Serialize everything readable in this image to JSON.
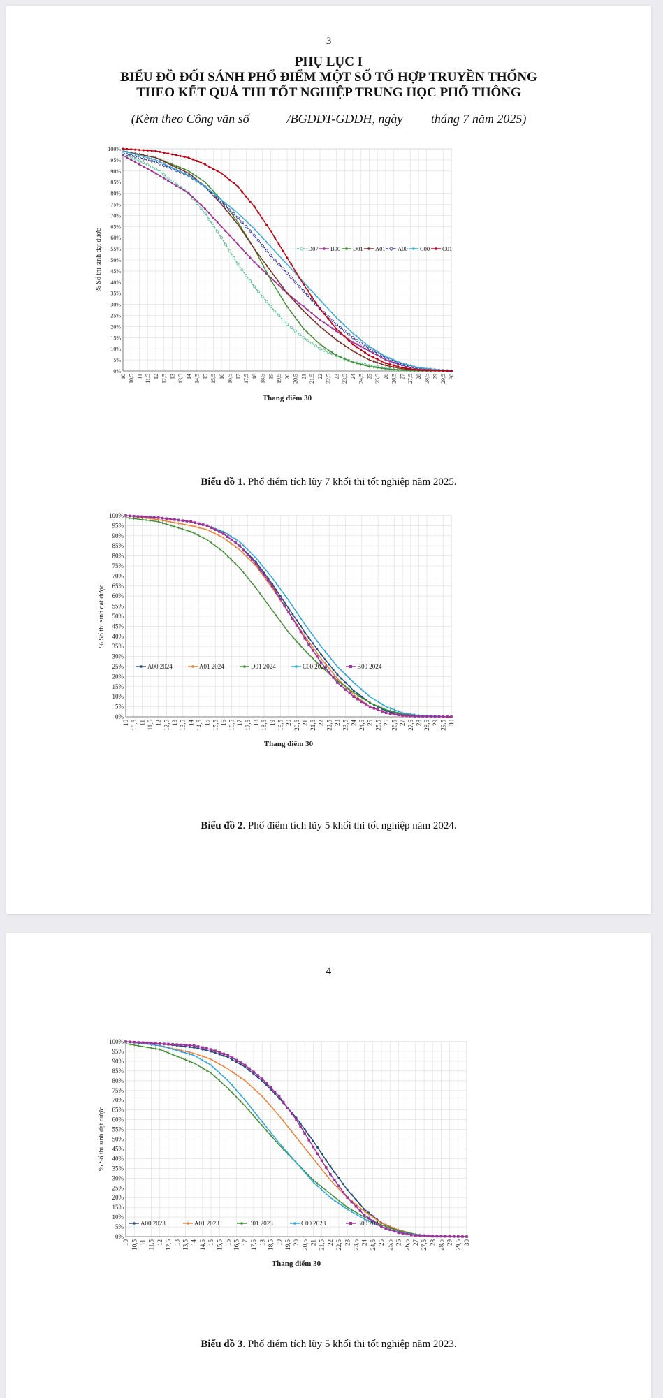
{
  "page1": {
    "page_number": "3",
    "title_lines": [
      "PHỤ LỤC I",
      "BIỂU ĐỒ ĐỐI SÁNH PHỔ ĐIỂM MỘT SỐ TỔ HỢP TRUYỀN THỐNG",
      "THEO KẾT QUẢ THI TỐT NGHIỆP TRUNG HỌC PHỔ THÔNG"
    ],
    "subtitle": "(Kèm theo Công văn số            /BGDĐT-GDĐH, ngày         tháng 7 năm 2025)"
  },
  "page2": {
    "page_number": "4"
  },
  "captions": [
    {
      "label": "Biểu đồ 1",
      "text": ". Phổ điểm tích lũy 7 khối thi tốt nghiệp năm 2025."
    },
    {
      "label": "Biểu đồ 2",
      "text": ". Phổ điểm tích lũy 5 khối thi tốt nghiệp năm 2024."
    },
    {
      "label": "Biểu đồ 3",
      "text": ". Phổ điểm tích lũy 5 khối thi tốt nghiệp năm 2023."
    }
  ],
  "chart_data": [
    {
      "type": "line",
      "xlabel": "Thang điểm 30",
      "ylabel": "% Số thí sinh đạt được",
      "x_start": 10,
      "x_end": 30,
      "x_step": 0.25,
      "x_tick_labels": [
        "10",
        "10,5",
        "11",
        "11,5",
        "12",
        "12,5",
        "13",
        "13,5",
        "14",
        "14,5",
        "15",
        "15,5",
        "16",
        "16,5",
        "17",
        "17,5",
        "18",
        "18,5",
        "19",
        "19,5",
        "20",
        "20,5",
        "21",
        "21,5",
        "22",
        "22,5",
        "23",
        "23,5",
        "24",
        "24,5",
        "25",
        "25,5",
        "26",
        "26,5",
        "27",
        "27,5",
        "28",
        "28,5",
        "29",
        "29,5",
        "30"
      ],
      "y_tick_labels": [
        "0%",
        "5%",
        "10%",
        "15%",
        "20%",
        "25%",
        "30%",
        "35%",
        "40%",
        "45%",
        "50%",
        "55%",
        "60%",
        "65%",
        "70%",
        "75%",
        "80%",
        "85%",
        "90%",
        "95%",
        "100%"
      ],
      "ylim": [
        0,
        100
      ],
      "grid": true,
      "legend_position": "right-middle",
      "series": [
        {
          "name": "D07",
          "color": "#4fbf8a",
          "marker": "circle-open",
          "dashed": true,
          "x": [
            10,
            12,
            14,
            15,
            16,
            17,
            18,
            19,
            20,
            21,
            22,
            23,
            24,
            25,
            26,
            27,
            28,
            30
          ],
          "y": [
            98,
            91,
            80,
            71,
            60,
            48,
            38,
            29,
            21,
            15,
            10,
            7,
            4,
            2.5,
            1.2,
            0.5,
            0.2,
            0
          ]
        },
        {
          "name": "B00",
          "color": "#a0309a",
          "marker": "dot",
          "x": [
            10,
            12,
            14,
            15,
            16,
            17,
            18,
            19,
            20,
            21,
            22,
            23,
            24,
            25,
            26,
            27,
            28,
            30
          ],
          "y": [
            97,
            89,
            80,
            73,
            65,
            57,
            49,
            42,
            35,
            29,
            23,
            18,
            13,
            9,
            5,
            2.5,
            1,
            0
          ]
        },
        {
          "name": "D01",
          "color": "#3d8c2e",
          "marker": "dash",
          "x": [
            10,
            12,
            14,
            15,
            16,
            17,
            18,
            19,
            20,
            21,
            22,
            23,
            24,
            25,
            26,
            27,
            28,
            30
          ],
          "y": [
            99,
            96,
            90,
            85,
            77,
            67,
            55,
            41,
            29,
            19,
            12,
            7,
            4,
            2,
            1,
            0.4,
            0.1,
            0
          ]
        },
        {
          "name": "A01",
          "color": "#7a2c1e",
          "marker": "dash",
          "x": [
            10,
            12,
            14,
            15,
            16,
            17,
            18,
            19,
            20,
            21,
            22,
            23,
            24,
            25,
            26,
            27,
            28,
            30
          ],
          "y": [
            99,
            96,
            89,
            83,
            75,
            66,
            55,
            45,
            35,
            27,
            20,
            14,
            9,
            5,
            2.5,
            1,
            0.3,
            0
          ]
        },
        {
          "name": "A00",
          "color": "#2c2ea0",
          "marker": "diamond-open",
          "dashed": true,
          "x": [
            10,
            12,
            14,
            15,
            16,
            17,
            18,
            19,
            20,
            21,
            22,
            23,
            24,
            25,
            26,
            27,
            28,
            30
          ],
          "y": [
            98,
            94,
            88,
            83,
            76,
            69,
            61,
            52,
            44,
            36,
            28,
            21,
            15,
            10,
            6,
            3,
            1,
            0
          ]
        },
        {
          "name": "C00",
          "color": "#3aa8d8",
          "marker": "dash",
          "x": [
            10,
            12,
            14,
            15,
            16,
            17,
            18,
            19,
            20,
            21,
            22,
            23,
            24,
            25,
            26,
            27,
            28,
            30
          ],
          "y": [
            99,
            95,
            88,
            83,
            77,
            71,
            64,
            56,
            48,
            40,
            32,
            24,
            17,
            11,
            6.5,
            3.5,
            1.5,
            0
          ]
        },
        {
          "name": "C01",
          "color": "#c00010",
          "marker": "dot",
          "x": [
            10,
            12,
            14,
            15,
            16,
            17,
            18,
            19,
            20,
            21,
            22,
            23,
            24,
            25,
            26,
            27,
            28,
            30
          ],
          "y": [
            100,
            99,
            96,
            93,
            89,
            83,
            74,
            63,
            51,
            39,
            28,
            19,
            12,
            7,
            3.5,
            1.5,
            0.5,
            0
          ]
        }
      ]
    },
    {
      "type": "line",
      "xlabel": "Thang điểm 30",
      "ylabel": "% Số thí sinh đạt được",
      "x_start": 10,
      "x_end": 30,
      "x_step": 0.25,
      "x_tick_labels": [
        "10",
        "10,5",
        "11",
        "11,5",
        "12",
        "12,5",
        "13",
        "13,5",
        "14",
        "14,5",
        "15",
        "15,5",
        "16",
        "16,5",
        "17",
        "17,5",
        "18",
        "18,5",
        "19",
        "19,5",
        "20",
        "20,5",
        "21",
        "21,5",
        "22",
        "22,5",
        "23",
        "23,5",
        "24",
        "24,5",
        "25",
        "25,5",
        "26",
        "26,5",
        "27",
        "27,5",
        "28",
        "28,5",
        "29",
        "29,5",
        "30"
      ],
      "y_tick_labels": [
        "0%",
        "5%",
        "10%",
        "15%",
        "20%",
        "25%",
        "30%",
        "35%",
        "40%",
        "45%",
        "50%",
        "55%",
        "60%",
        "65%",
        "70%",
        "75%",
        "80%",
        "85%",
        "90%",
        "95%",
        "100%"
      ],
      "ylim": [
        0,
        100
      ],
      "grid": true,
      "legend_position": "bottom-left",
      "series": [
        {
          "name": "A00 2024",
          "color": "#1f4e79",
          "marker": "dot",
          "x": [
            10,
            12,
            14,
            15,
            16,
            17,
            18,
            19,
            20,
            21,
            22,
            23,
            24,
            25,
            26,
            27,
            28,
            30
          ],
          "y": [
            100,
            99,
            97,
            95,
            91,
            85,
            77,
            66,
            54,
            42,
            31,
            21,
            13,
            7,
            3,
            1,
            0.3,
            0
          ]
        },
        {
          "name": "A01 2024",
          "color": "#ed7d31",
          "marker": "dash",
          "x": [
            10,
            12,
            14,
            15,
            16,
            17,
            18,
            19,
            20,
            21,
            22,
            23,
            24,
            25,
            26,
            27,
            28,
            30
          ],
          "y": [
            100,
            98,
            95,
            93,
            89,
            83,
            75,
            64,
            52,
            40,
            29,
            19,
            11,
            5,
            2,
            0.7,
            0.2,
            0
          ]
        },
        {
          "name": "D01 2024",
          "color": "#3d8c2e",
          "marker": "dash",
          "x": [
            10,
            12,
            14,
            15,
            16,
            17,
            18,
            19,
            20,
            21,
            22,
            23,
            24,
            25,
            26,
            27,
            28,
            30
          ],
          "y": [
            99,
            97,
            92,
            88,
            82,
            74,
            64,
            53,
            42,
            33,
            25,
            18,
            12,
            7,
            3.5,
            1.5,
            0.4,
            0
          ]
        },
        {
          "name": "C00 2024",
          "color": "#27a4dd",
          "marker": "dash",
          "x": [
            10,
            12,
            14,
            15,
            16,
            17,
            18,
            19,
            20,
            21,
            22,
            23,
            24,
            25,
            26,
            27,
            28,
            30
          ],
          "y": [
            100,
            99,
            97,
            95,
            92,
            87,
            79,
            69,
            58,
            46,
            35,
            25,
            17,
            10,
            5,
            2,
            0.7,
            0
          ]
        },
        {
          "name": "B00 2024",
          "color": "#a0309a",
          "marker": "square",
          "x": [
            10,
            12,
            14,
            15,
            16,
            17,
            18,
            19,
            20,
            21,
            22,
            23,
            24,
            25,
            26,
            27,
            28,
            30
          ],
          "y": [
            100,
            99,
            97,
            95,
            91,
            85,
            76,
            65,
            52,
            39,
            27,
            17,
            10,
            5,
            2,
            0.6,
            0.2,
            0
          ]
        }
      ]
    },
    {
      "type": "line",
      "xlabel": "Thang điểm 30",
      "ylabel": "% Số thí sinh đạt được",
      "x_start": 10,
      "x_end": 30,
      "x_step": 0.25,
      "x_tick_labels": [
        "10",
        "10,5",
        "11",
        "11,5",
        "12",
        "12,5",
        "13",
        "13,5",
        "14",
        "14,5",
        "15",
        "15,5",
        "16",
        "16,5",
        "17",
        "17,5",
        "18",
        "18,5",
        "19",
        "19,5",
        "20",
        "20,5",
        "21",
        "21,5",
        "22",
        "22,5",
        "23",
        "23,5",
        "24",
        "24,5",
        "25",
        "25,5",
        "26",
        "26,5",
        "27",
        "27,5",
        "28",
        "28,5",
        "29",
        "29,5",
        "30"
      ],
      "y_tick_labels": [
        "0%",
        "5%",
        "10%",
        "15%",
        "20%",
        "25%",
        "30%",
        "35%",
        "40%",
        "45%",
        "50%",
        "55%",
        "60%",
        "65%",
        "70%",
        "75%",
        "80%",
        "85%",
        "90%",
        "95%",
        "100%"
      ],
      "ylim": [
        0,
        100
      ],
      "grid": true,
      "legend_position": "bottom-left",
      "series": [
        {
          "name": "A00 2023",
          "color": "#1f4e79",
          "marker": "dot",
          "x": [
            10,
            12,
            14,
            15,
            16,
            17,
            18,
            19,
            20,
            21,
            22,
            23,
            24,
            25,
            26,
            27,
            28,
            30
          ],
          "y": [
            100,
            99,
            97,
            95,
            92,
            87,
            80,
            71,
            61,
            49,
            36,
            24,
            14,
            7,
            3,
            1,
            0.3,
            0
          ]
        },
        {
          "name": "A01 2023",
          "color": "#ed7d31",
          "marker": "dash",
          "x": [
            10,
            12,
            14,
            15,
            16,
            17,
            18,
            19,
            20,
            21,
            22,
            23,
            24,
            25,
            26,
            27,
            28,
            30
          ],
          "y": [
            100,
            98,
            94,
            91,
            86,
            80,
            72,
            62,
            51,
            40,
            29,
            20,
            13,
            7,
            3.5,
            1.2,
            0.3,
            0
          ]
        },
        {
          "name": "D01 2023",
          "color": "#3d8c2e",
          "marker": "dash",
          "x": [
            10,
            12,
            14,
            15,
            16,
            17,
            18,
            19,
            20,
            21,
            22,
            23,
            24,
            25,
            26,
            27,
            28,
            30
          ],
          "y": [
            99,
            96,
            89,
            84,
            76,
            67,
            57,
            47,
            38,
            29,
            22,
            15,
            10,
            6,
            3,
            1.2,
            0.3,
            0
          ]
        },
        {
          "name": "C00 2023",
          "color": "#27a4dd",
          "marker": "dash",
          "x": [
            10,
            12,
            14,
            15,
            16,
            17,
            18,
            19,
            20,
            21,
            22,
            23,
            24,
            25,
            26,
            27,
            28,
            30
          ],
          "y": [
            100,
            98,
            93,
            88,
            80,
            70,
            59,
            48,
            38,
            28,
            20,
            14,
            9,
            5,
            2.5,
            1,
            0.3,
            0
          ]
        },
        {
          "name": "B00 2023",
          "color": "#a0309a",
          "marker": "square",
          "x": [
            10,
            12,
            14,
            15,
            16,
            17,
            18,
            19,
            20,
            21,
            22,
            23,
            24,
            25,
            26,
            27,
            28,
            30
          ],
          "y": [
            100,
            99,
            98,
            96,
            93,
            88,
            81,
            72,
            60,
            46,
            32,
            20,
            11,
            5,
            2,
            0.6,
            0.2,
            0
          ]
        }
      ]
    }
  ]
}
